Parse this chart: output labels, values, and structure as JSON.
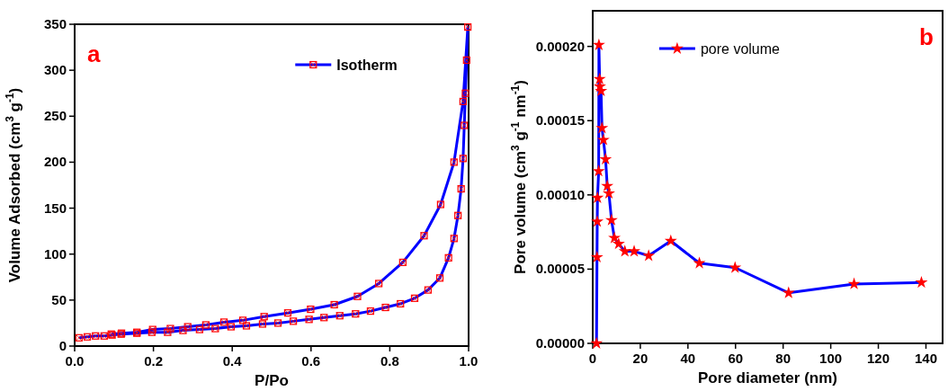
{
  "chart_data": [
    {
      "type": "line",
      "xlabel": "P/Po",
      "ylabel": "Volume Adsorbed (cm$^{3}$ g$^{-1}$)",
      "annotations": [
        "a"
      ],
      "xlim": [
        0,
        1
      ],
      "ylim": [
        0,
        350
      ],
      "xticks": [
        {
          "value": 0,
          "label": "0.0"
        },
        {
          "value": 0.2,
          "label": "0.2"
        },
        {
          "value": 0.4,
          "label": "0.4"
        },
        {
          "value": 0.6,
          "label": "0.6"
        },
        {
          "value": 0.8,
          "label": "0.8"
        },
        {
          "value": 1,
          "label": "1.0"
        }
      ],
      "yticks": [
        0,
        50,
        100,
        150,
        200,
        250,
        300,
        350
      ],
      "legend": "top right",
      "marker": "square",
      "line_style": "solid",
      "grid": false,
      "series": [
        {
          "name": "Isotherm",
          "color": "#0000ff",
          "x": [
            0.011,
            0.032,
            0.053,
            0.075,
            0.095,
            0.118,
            0.158,
            0.196,
            0.236,
            0.275,
            0.317,
            0.357,
            0.397,
            0.436,
            0.477,
            0.516,
            0.555,
            0.595,
            0.633,
            0.673,
            0.713,
            0.751,
            0.789,
            0.827,
            0.863,
            0.897,
            0.927,
            0.949,
            0.963,
            0.973,
            0.981,
            0.986,
            0.989,
            0.992,
            0.995,
            0.998,
            0.986,
            0.963,
            0.929,
            0.887,
            0.833,
            0.772,
            0.718,
            0.659,
            0.599,
            0.541,
            0.481,
            0.427,
            0.379,
            0.333,
            0.287,
            0.243,
            0.198,
            0.158,
            0.119,
            0.093
          ],
          "values": [
            9,
            10,
            11,
            11,
            12,
            13,
            14,
            15,
            15,
            17,
            18,
            19,
            21,
            22,
            24,
            25,
            27,
            29,
            31,
            33,
            35,
            38,
            42,
            46,
            52,
            61,
            74,
            96,
            117,
            142,
            171,
            204,
            240,
            275,
            311,
            347,
            266,
            200,
            154,
            120,
            91,
            68,
            54,
            45,
            40,
            36,
            32,
            28,
            26,
            23,
            21,
            19,
            18,
            15,
            14,
            13
          ]
        }
      ]
    },
    {
      "type": "line",
      "xlabel": "Pore diameter (nm)",
      "ylabel": "Pore volume (cm$^{3}$ g$^{-1}$ nm$^{-1}$)",
      "annotations": [
        "b"
      ],
      "xlim": [
        0,
        147
      ],
      "ylim": [
        0,
        0.000224
      ],
      "xticks": [
        0,
        20,
        40,
        60,
        80,
        100,
        120,
        140
      ],
      "yticks": [
        {
          "value": 0,
          "label": "0.00000"
        },
        {
          "value": 5e-05,
          "label": "0.00005"
        },
        {
          "value": 0.0001,
          "label": "0.00010"
        },
        {
          "value": 0.00015,
          "label": "0.00015"
        },
        {
          "value": 0.0002,
          "label": "0.00020"
        }
      ],
      "legend": "top left",
      "marker": "star",
      "line_style": "solid",
      "grid": false,
      "series": [
        {
          "name": "pore volume",
          "color": "#0000ff",
          "x": [
            1.6,
            1.8,
            1.9,
            2.0,
            2.5,
            2.6,
            2.9,
            3.0,
            3.5,
            3.9,
            4.5,
            5.4,
            6.1,
            6.8,
            7.9,
            9.1,
            10.9,
            13.5,
            17.4,
            23.5,
            32.8,
            44.8,
            59.8,
            82.3,
            109.8,
            138.1
          ],
          "values": [
            0,
            5.8e-05,
            8.2e-05,
            9.8e-05,
            0.000116,
            0.000201,
            0.000178,
            0.000173,
            0.00017,
            0.000145,
            0.000137,
            0.000124,
            0.000106,
            0.000101,
            8.3e-05,
            7.1e-05,
            6.7e-05,
            6.2e-05,
            6.2e-05,
            5.9e-05,
            6.9e-05,
            5.4e-05,
            5.1e-05,
            3.4e-05,
            4e-05,
            4.1e-05
          ]
        }
      ]
    }
  ]
}
